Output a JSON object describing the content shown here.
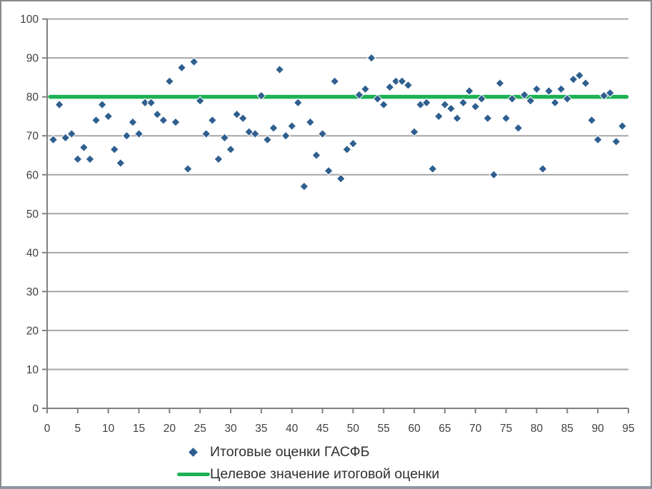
{
  "colors": {
    "series_blue": "#2E5F8F",
    "target_green": "#1CB153",
    "gridline": "#A6A6A6",
    "axis": "#808080",
    "axis_text": "#404040",
    "legend_text": "#2F2F2F",
    "frame_border": "#8A8A8A"
  },
  "legend": {
    "items": [
      {
        "label": "Итоговые оценки ГАСФБ",
        "marker": "diamond"
      },
      {
        "label": "Целевое значение итоговой оценки",
        "marker": "line"
      }
    ]
  },
  "chart_data": {
    "type": "scatter",
    "title": "",
    "xlabel": "",
    "ylabel": "",
    "grid": true,
    "legend_position": "bottom-center",
    "x_axis": {
      "min": 0,
      "max": 95,
      "tick_step": 5,
      "tick_labels": [
        "0",
        "5",
        "10",
        "15",
        "20",
        "25",
        "30",
        "35",
        "40",
        "45",
        "50",
        "55",
        "60",
        "65",
        "70",
        "75",
        "80",
        "85",
        "90",
        "95"
      ]
    },
    "y_axis": {
      "min": 0,
      "max": 100,
      "tick_step": 10,
      "tick_labels": [
        "0",
        "10",
        "20",
        "30",
        "40",
        "50",
        "60",
        "70",
        "80",
        "90",
        "100"
      ]
    },
    "series": [
      {
        "name": "Итоговые оценки ГАСФБ",
        "type": "scatter",
        "marker": "diamond",
        "color": "#2E5F8F",
        "points": [
          [
            1,
            69
          ],
          [
            2,
            78
          ],
          [
            3,
            69.5
          ],
          [
            4,
            70.5
          ],
          [
            5,
            64
          ],
          [
            6,
            67
          ],
          [
            7,
            64
          ],
          [
            8,
            74
          ],
          [
            9,
            78
          ],
          [
            10,
            75
          ],
          [
            11,
            66.5
          ],
          [
            12,
            63
          ],
          [
            13,
            70
          ],
          [
            14,
            73.5
          ],
          [
            15,
            70.5
          ],
          [
            16,
            78.5
          ],
          [
            17,
            78.5
          ],
          [
            18,
            75.5
          ],
          [
            19,
            74
          ],
          [
            20,
            84
          ],
          [
            21,
            73.5
          ],
          [
            22,
            87.5
          ],
          [
            23,
            61.5
          ],
          [
            24,
            89
          ],
          [
            25,
            79
          ],
          [
            26,
            70.5
          ],
          [
            27,
            74
          ],
          [
            28,
            64
          ],
          [
            29,
            69.5
          ],
          [
            30,
            66.5
          ],
          [
            31,
            75.5
          ],
          [
            32,
            74.5
          ],
          [
            33,
            71
          ],
          [
            34,
            70.5
          ],
          [
            35,
            80.3
          ],
          [
            36,
            69
          ],
          [
            37,
            72
          ],
          [
            38,
            87
          ],
          [
            39,
            70
          ],
          [
            40,
            72.5
          ],
          [
            41,
            78.5
          ],
          [
            42,
            57
          ],
          [
            43,
            73.5
          ],
          [
            44,
            65
          ],
          [
            45,
            70.5
          ],
          [
            46,
            61
          ],
          [
            47,
            84
          ],
          [
            48,
            59
          ],
          [
            49,
            66.5
          ],
          [
            50,
            68
          ],
          [
            51,
            80.5
          ],
          [
            52,
            82
          ],
          [
            53,
            90
          ],
          [
            54,
            79.5
          ],
          [
            55,
            78
          ],
          [
            56,
            82.5
          ],
          [
            57,
            84
          ],
          [
            58,
            84
          ],
          [
            59,
            83
          ],
          [
            60,
            71
          ],
          [
            61,
            78
          ],
          [
            62,
            78.5
          ],
          [
            63,
            61.5
          ],
          [
            64,
            75
          ],
          [
            65,
            78
          ],
          [
            66,
            77
          ],
          [
            67,
            74.5
          ],
          [
            68,
            78.5
          ],
          [
            69,
            81.5
          ],
          [
            70,
            77.5
          ],
          [
            71,
            79.5
          ],
          [
            72,
            74.5
          ],
          [
            73,
            60
          ],
          [
            74,
            83.5
          ],
          [
            75,
            74.5
          ],
          [
            76,
            79.5
          ],
          [
            77,
            72
          ],
          [
            78,
            80.5
          ],
          [
            79,
            79
          ],
          [
            80,
            82
          ],
          [
            81,
            61.5
          ],
          [
            82,
            81.5
          ],
          [
            83,
            78.5
          ],
          [
            84,
            82
          ],
          [
            85,
            79.5
          ],
          [
            86,
            84.5
          ],
          [
            87,
            85.5
          ],
          [
            88,
            83.5
          ],
          [
            89,
            74
          ],
          [
            90,
            69
          ],
          [
            91,
            80.3
          ],
          [
            92,
            81
          ],
          [
            93,
            68.5
          ],
          [
            94,
            72.5
          ]
        ]
      },
      {
        "name": "Целевое значение итоговой оценки",
        "type": "line",
        "color": "#1CB153",
        "target_value": 80,
        "x_start": 0.5,
        "x_end": 94.7
      }
    ]
  }
}
